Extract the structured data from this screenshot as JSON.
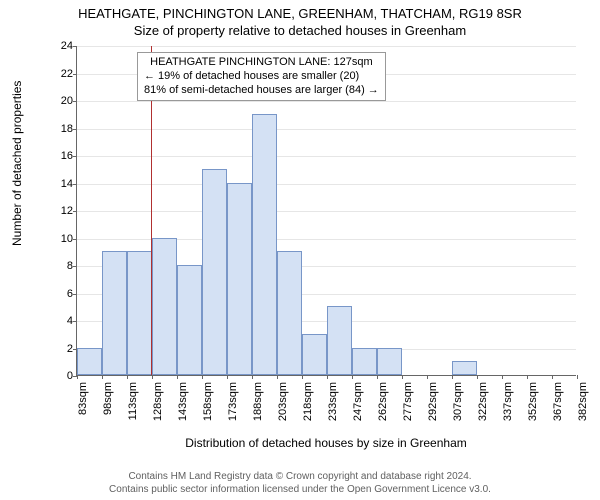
{
  "title_main": "HEATHGATE, PINCHINGTON LANE, GREENHAM, THATCHAM, RG19 8SR",
  "title_sub": "Size of property relative to detached houses in Greenham",
  "chart": {
    "type": "histogram",
    "ylabel": "Number of detached properties",
    "xlabel": "Distribution of detached houses by size in Greenham",
    "ylim": [
      0,
      24
    ],
    "ytick_step": 2,
    "yticks": [
      0,
      2,
      4,
      6,
      8,
      10,
      12,
      14,
      16,
      18,
      20,
      22,
      24
    ],
    "xticks": [
      "83sqm",
      "98sqm",
      "113sqm",
      "128sqm",
      "143sqm",
      "158sqm",
      "173sqm",
      "188sqm",
      "203sqm",
      "218sqm",
      "233sqm",
      "247sqm",
      "262sqm",
      "277sqm",
      "292sqm",
      "307sqm",
      "322sqm",
      "337sqm",
      "352sqm",
      "367sqm",
      "382sqm"
    ],
    "bars": [
      2,
      9,
      9,
      10,
      8,
      15,
      14,
      19,
      9,
      3,
      5,
      2,
      2,
      0,
      0,
      1,
      0,
      0,
      0,
      0
    ],
    "bar_fill": "#d4e1f4",
    "bar_border": "#7896c8",
    "marker_index": 2.95,
    "marker_color": "#b03030",
    "background_color": "#ffffff",
    "grid_color": "#e6e6e6",
    "axis_color": "#666666",
    "tick_fontsize": 11,
    "label_fontsize": 12,
    "title_fontsize": 13
  },
  "annotation": {
    "line1": "HEATHGATE PINCHINGTON LANE: 127sqm",
    "line2": "← 19% of detached houses are smaller (20)",
    "line3": "81% of semi-detached houses are larger (84) →"
  },
  "footer": {
    "line1": "Contains HM Land Registry data © Crown copyright and database right 2024.",
    "line2": "Contains public sector information licensed under the Open Government Licence v3.0."
  }
}
